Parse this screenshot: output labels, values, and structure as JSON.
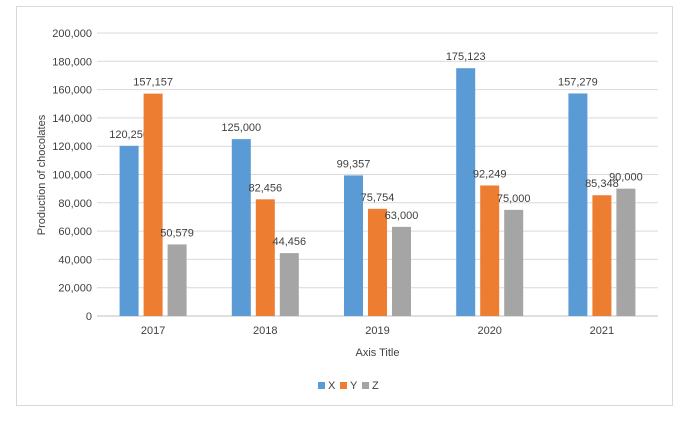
{
  "chart_data": {
    "type": "bar",
    "title": "",
    "xlabel": "Axis Title",
    "ylabel": "Production of chocolates",
    "categories": [
      "2017",
      "2018",
      "2019",
      "2020",
      "2021"
    ],
    "series": [
      {
        "name": "X",
        "color": "#5b9bd5",
        "values": [
          120250,
          125000,
          99357,
          175123,
          157279
        ]
      },
      {
        "name": "Y",
        "color": "#ed7d31",
        "values": [
          157157,
          82456,
          75754,
          92249,
          85348
        ]
      },
      {
        "name": "Z",
        "color": "#a5a5a5",
        "values": [
          50579,
          44456,
          63000,
          75000,
          90000
        ]
      }
    ],
    "ylim": [
      0,
      200000
    ],
    "yticks": [
      0,
      20000,
      40000,
      60000,
      80000,
      100000,
      120000,
      140000,
      160000,
      180000,
      200000
    ],
    "grid": true,
    "legend": "bottom"
  }
}
